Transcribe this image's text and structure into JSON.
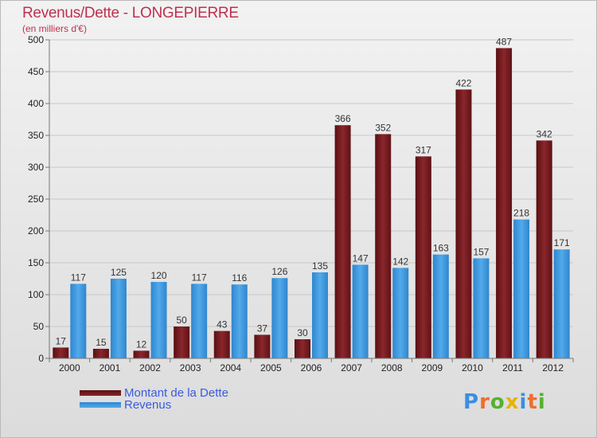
{
  "title": "Revenus/Dette - LONGEPIERRE",
  "subtitle": "(en milliers d'€)",
  "logo": {
    "text": "Proxiti",
    "colors": [
      "#3a8ee0",
      "#ef6e2a",
      "#56b12e",
      "#e6b400",
      "#3a8ee0",
      "#ef6e2a",
      "#56b12e"
    ]
  },
  "colors": {
    "dette": "#7a1a1f",
    "revenus": "#3d98dc",
    "title": "#c0304f",
    "legend_text": "#3a5adf"
  },
  "chart_data": {
    "type": "bar",
    "categories": [
      "2000",
      "2001",
      "2002",
      "2003",
      "2004",
      "2005",
      "2006",
      "2007",
      "2008",
      "2009",
      "2010",
      "2011",
      "2012"
    ],
    "series": [
      {
        "name": "Montant de la Dette",
        "values": [
          17,
          15,
          12,
          50,
          43,
          37,
          30,
          366,
          352,
          317,
          422,
          487,
          342
        ]
      },
      {
        "name": "Revenus",
        "values": [
          117,
          125,
          120,
          117,
          116,
          126,
          135,
          147,
          142,
          163,
          157,
          218,
          171
        ]
      }
    ],
    "yticks": [
      0,
      50,
      100,
      150,
      200,
      250,
      300,
      350,
      400,
      450,
      500
    ],
    "ylim": [
      0,
      500
    ],
    "grid": true,
    "legend_position": "bottom-left"
  }
}
